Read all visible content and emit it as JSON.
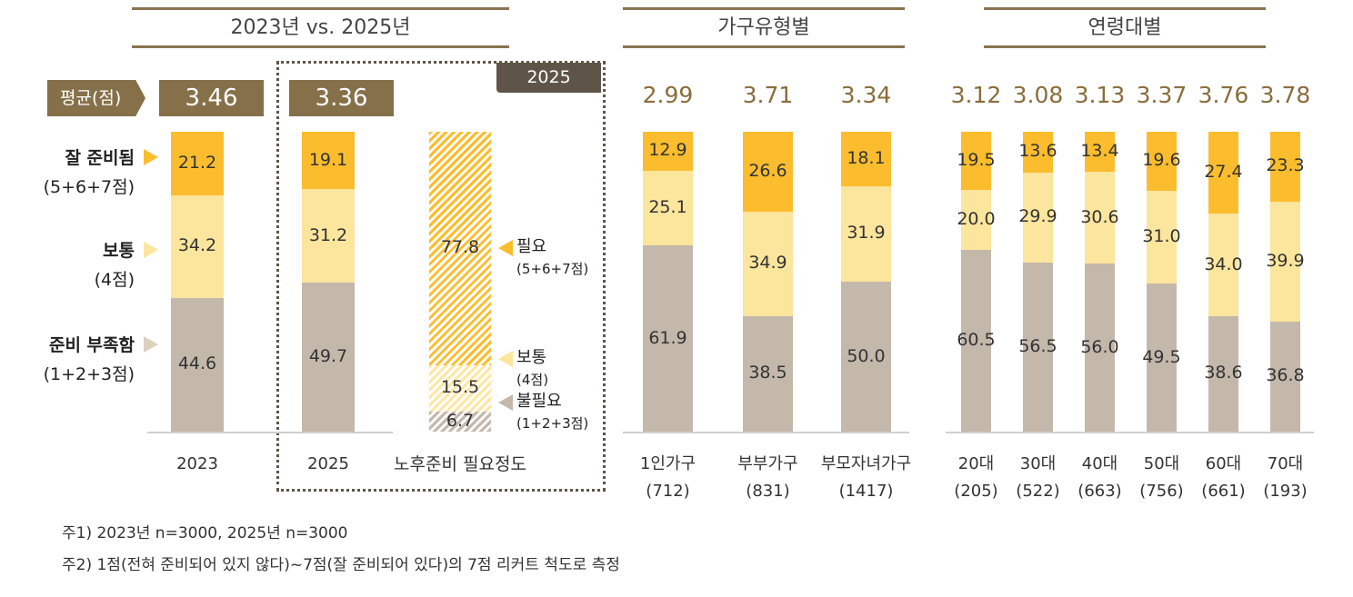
{
  "colors": {
    "good": "#fbbd2e",
    "normal": "#fce59c",
    "lack": "#c4b8ab",
    "brand": "#86704a",
    "tag": "#5e5548",
    "avg_text": "#8a6d3b"
  },
  "sections": {
    "compare": "2023년 vs. 2025년",
    "household": "가구유형별",
    "age": "연령대별"
  },
  "avg_label": "평균(점)",
  "tag_2025": "2025",
  "legend": {
    "good": {
      "label": "잘 준비됨",
      "sub": "(5+6+7점)"
    },
    "normal": {
      "label": "보통",
      "sub": "(4점)"
    },
    "lack": {
      "label": "준비 부족함",
      "sub": "(1+2+3점)"
    }
  },
  "need_legend": {
    "need": {
      "label": "필요",
      "sub": "(5+6+7점)"
    },
    "normal": {
      "label": "보통",
      "sub": "(4점)"
    },
    "noneed": {
      "label": "불필요",
      "sub": "(1+2+3점)"
    }
  },
  "chart_data": [
    {
      "type": "bar",
      "stacked": true,
      "title": "2023년 vs. 2025년",
      "categories": [
        "2023",
        "2025"
      ],
      "averages": [
        "3.46",
        "3.36"
      ],
      "series": [
        {
          "name": "잘 준비됨",
          "values": [
            21.2,
            19.1
          ]
        },
        {
          "name": "보통",
          "values": [
            34.2,
            31.2
          ]
        },
        {
          "name": "준비 부족함",
          "values": [
            44.6,
            49.7
          ]
        }
      ]
    },
    {
      "type": "bar",
      "stacked": true,
      "categories": [
        "노후준비 필요정도"
      ],
      "pattern": "hatched",
      "series": [
        {
          "name": "필요",
          "values": [
            77.8
          ]
        },
        {
          "name": "보통",
          "values": [
            15.5
          ]
        },
        {
          "name": "불필요",
          "values": [
            6.7
          ]
        }
      ]
    },
    {
      "type": "bar",
      "stacked": true,
      "title": "가구유형별",
      "categories": [
        "1인가구",
        "부부가구",
        "부모자녀가구"
      ],
      "counts": [
        "(712)",
        "(831)",
        "(1417)"
      ],
      "averages": [
        "2.99",
        "3.71",
        "3.34"
      ],
      "series": [
        {
          "name": "잘 준비됨",
          "values": [
            12.9,
            26.6,
            18.1
          ]
        },
        {
          "name": "보통",
          "values": [
            25.1,
            34.9,
            31.9
          ]
        },
        {
          "name": "준비 부족함",
          "values": [
            61.9,
            38.5,
            50.0
          ]
        }
      ]
    },
    {
      "type": "bar",
      "stacked": true,
      "title": "연령대별",
      "categories": [
        "20대",
        "30대",
        "40대",
        "50대",
        "60대",
        "70대"
      ],
      "counts": [
        "(205)",
        "(522)",
        "(663)",
        "(756)",
        "(661)",
        "(193)"
      ],
      "averages": [
        "3.12",
        "3.08",
        "3.13",
        "3.37",
        "3.76",
        "3.78"
      ],
      "series": [
        {
          "name": "잘 준비됨",
          "values": [
            19.5,
            13.6,
            13.4,
            19.6,
            27.4,
            23.3
          ]
        },
        {
          "name": "보통",
          "values": [
            20.0,
            29.9,
            30.6,
            31.0,
            34.0,
            39.9
          ]
        },
        {
          "name": "준비 부족함",
          "values": [
            60.5,
            56.5,
            56.0,
            49.5,
            38.6,
            36.8
          ]
        }
      ]
    }
  ],
  "notes": [
    "주1) 2023년 n=3000, 2025년 n=3000",
    "주2) 1점(전혀 준비되어 있지 않다)~7점(잘 준비되어 있다)의 7점 리커트 척도로 측정"
  ]
}
